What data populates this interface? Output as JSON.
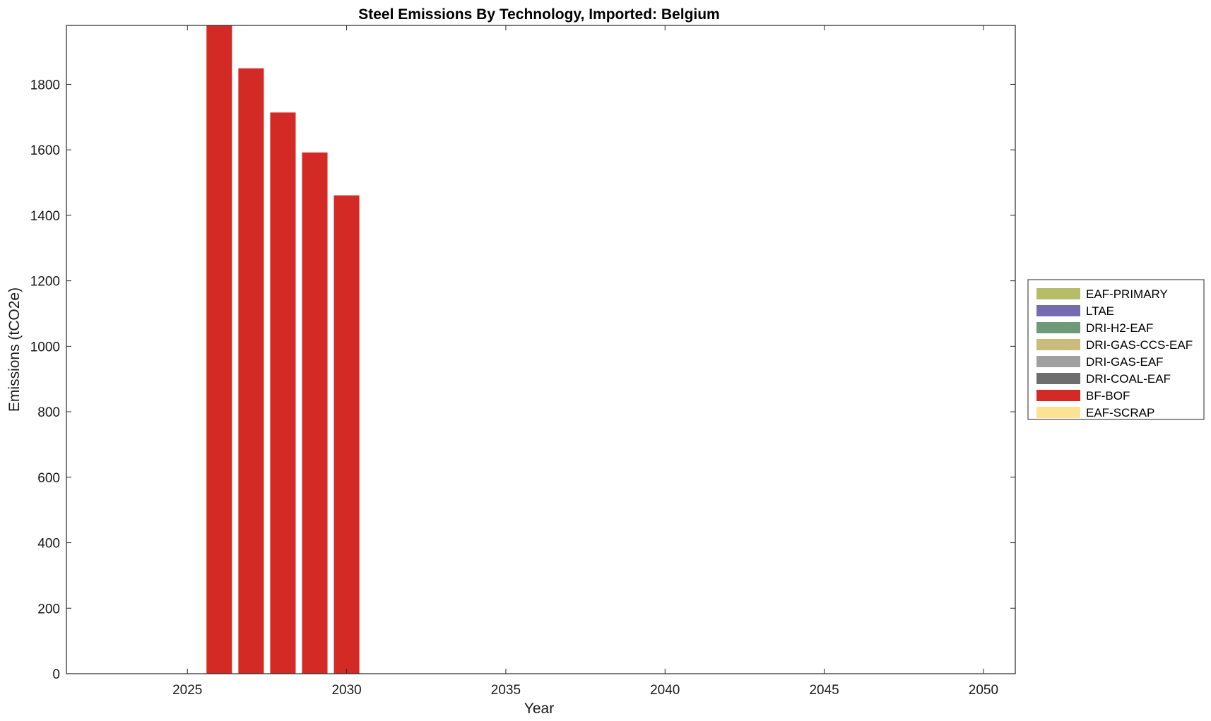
{
  "chart_data": {
    "type": "bar",
    "stacked": true,
    "title": "Steel Emissions By Technology, Imported: Belgium",
    "xlabel": "Year",
    "ylabel": "Emissions (tCO2e)",
    "xlim": [
      2021.2,
      2051.0
    ],
    "ylim": [
      0,
      1980
    ],
    "xticks": [
      2025,
      2030,
      2035,
      2040,
      2045,
      2050
    ],
    "yticks": [
      0,
      200,
      400,
      600,
      800,
      1000,
      1200,
      1400,
      1600,
      1800
    ],
    "grid": false,
    "legend_position": "outside-right",
    "x": [
      2026,
      2027,
      2028,
      2029,
      2030
    ],
    "series": [
      {
        "name": "EAF-PRIMARY",
        "color": "#b5bd68",
        "values": [
          0,
          0,
          0,
          0,
          0
        ]
      },
      {
        "name": "LTAE",
        "color": "#756bb1",
        "values": [
          0,
          0,
          0,
          0,
          0
        ]
      },
      {
        "name": "DRI-H2-EAF",
        "color": "#6f9a7a",
        "values": [
          0,
          0,
          0,
          0,
          0
        ]
      },
      {
        "name": "DRI-GAS-CCS-EAF",
        "color": "#c8bb7c",
        "values": [
          0,
          0,
          0,
          0,
          0
        ]
      },
      {
        "name": "DRI-GAS-EAF",
        "color": "#a0a0a0",
        "values": [
          0,
          0,
          0,
          0,
          0
        ]
      },
      {
        "name": "DRI-COAL-EAF",
        "color": "#6e6e6e",
        "values": [
          0,
          0,
          0,
          0,
          0
        ]
      },
      {
        "name": "BF-BOF",
        "color": "#d42a25",
        "values": [
          1980,
          1849,
          1714,
          1592,
          1461
        ]
      },
      {
        "name": "EAF-SCRAP",
        "color": "#fde292",
        "values": [
          0,
          0,
          0,
          0,
          0
        ]
      }
    ]
  }
}
